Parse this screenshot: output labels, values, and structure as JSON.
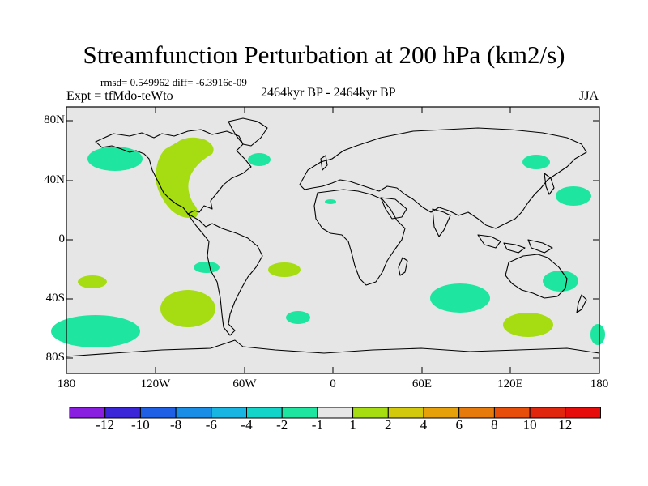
{
  "title": "Streamfunction Perturbation at 200 hPa (km2/s)",
  "stats": "rmsd= 0.549962 diff= -6.3916e-09",
  "experiment": "Expt = tfMdo-teWto",
  "period": "2464kyr BP - 2464kyr BP",
  "season": "JJA",
  "lat_ticks": [
    "80N",
    "40N",
    "0",
    "40S",
    "80S"
  ],
  "lon_ticks": [
    "180",
    "120W",
    "60W",
    "0",
    "60E",
    "120E",
    "180"
  ],
  "colorbar": {
    "labels": [
      "-12",
      "-10",
      "-8",
      "-6",
      "-4",
      "-2",
      "-1",
      "1",
      "2",
      "4",
      "6",
      "8",
      "10",
      "12"
    ],
    "colors": [
      "#8a1ee0",
      "#3a26d8",
      "#1e5fe6",
      "#1a8de6",
      "#18b4e2",
      "#12d4c8",
      "#1ee6a0",
      "#e6e6e6",
      "#a6dc12",
      "#d2c80c",
      "#e6a00a",
      "#e67a0a",
      "#e64e0a",
      "#e0260c",
      "#e60c0c"
    ]
  },
  "colors": {
    "neutral": "#e6e6e6",
    "negative_anomaly": "#1ee6a0",
    "positive_anomaly": "#a6dc12"
  }
}
